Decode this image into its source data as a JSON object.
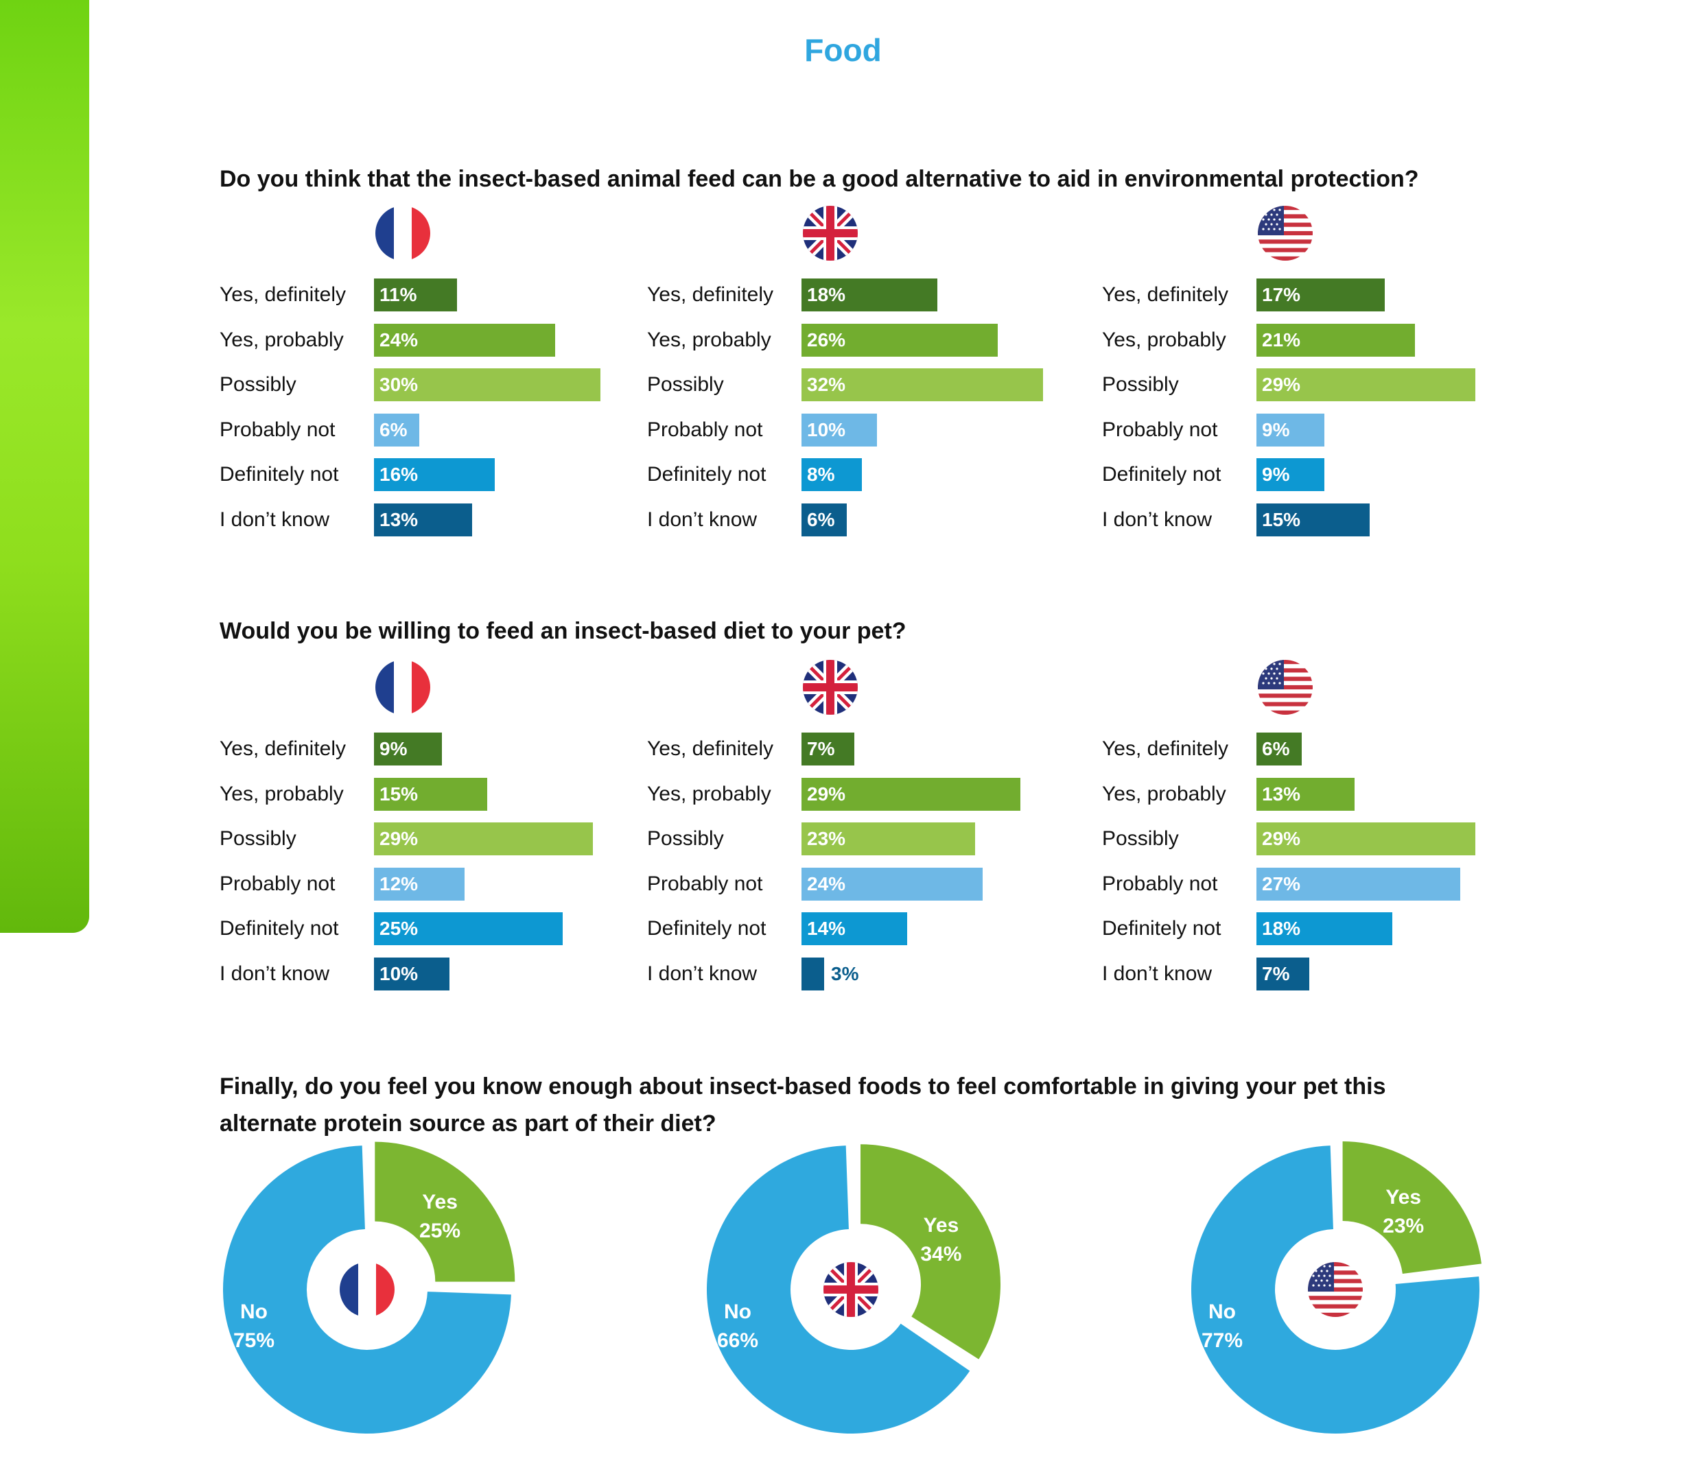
{
  "page": {
    "title": "Food"
  },
  "colors": {
    "title_blue": "#2fa6df",
    "yes_definitely": "#447a25",
    "yes_probably": "#72ad2f",
    "possibly": "#97c54b",
    "probably_not": "#6eb8e6",
    "definitely_not": "#0d98d2",
    "dont_know": "#0b5e8d",
    "donut_yes": "#7cb631",
    "donut_no": "#2fa9de"
  },
  "countries": [
    "France",
    "United Kingdom",
    "United States"
  ],
  "categories": [
    "Yes, definitely",
    "Yes, probably",
    "Possibly",
    "Probably not",
    "Definitely not",
    "I don’t know"
  ],
  "questions": {
    "q1": "Do you think that the insect-based animal feed can be a good alternative to aid in environmental protection?",
    "q2": "Would you be willing to feed an insect-based diet to your pet?",
    "q3_line1": "Finally, do you feel you know enough about insect-based foods to feel comfortable in giving your pet this",
    "q3_line2": "alternate protein source as part of their diet?"
  },
  "chart_data": [
    {
      "type": "bar",
      "title": "Do you think that the insect-based animal feed can be a good alternative to aid in environmental protection?",
      "categories": [
        "Yes, definitely",
        "Yes, probably",
        "Possibly",
        "Probably not",
        "Definitely not",
        "I don’t know"
      ],
      "unit": "%",
      "series": [
        {
          "name": "France",
          "flag": "france-flag",
          "values": [
            11,
            24,
            30,
            6,
            16,
            13
          ],
          "labels": [
            "11%",
            "24%",
            "30%",
            "6%",
            "16%",
            "13%"
          ]
        },
        {
          "name": "United Kingdom",
          "flag": "uk-flag",
          "values": [
            18,
            26,
            32,
            10,
            8,
            6
          ],
          "labels": [
            "18%",
            "26%",
            "32%",
            "10%",
            "8%",
            "6%"
          ]
        },
        {
          "name": "United States",
          "flag": "us-flag",
          "values": [
            17,
            21,
            29,
            9,
            9,
            15
          ],
          "labels": [
            "17%",
            "21%",
            "29%",
            "9%",
            "9%",
            "15%"
          ]
        }
      ]
    },
    {
      "type": "bar",
      "title": "Would you be willing to feed an insect-based diet to your pet?",
      "categories": [
        "Yes, definitely",
        "Yes, probably",
        "Possibly",
        "Probably not",
        "Definitely not",
        "I don’t know"
      ],
      "unit": "%",
      "series": [
        {
          "name": "France",
          "flag": "france-flag",
          "values": [
            9,
            15,
            29,
            12,
            25,
            10
          ],
          "labels": [
            "9%",
            "15%",
            "29%",
            "12%",
            "25%",
            "10%"
          ]
        },
        {
          "name": "United Kingdom",
          "flag": "uk-flag",
          "values": [
            7,
            29,
            23,
            24,
            14,
            3
          ],
          "labels": [
            "7%",
            "29%",
            "23%",
            "24%",
            "14%",
            "3%"
          ]
        },
        {
          "name": "United States",
          "flag": "us-flag",
          "values": [
            6,
            13,
            29,
            27,
            18,
            7
          ],
          "labels": [
            "6%",
            "13%",
            "29%",
            "27%",
            "18%",
            "7%"
          ]
        }
      ]
    },
    {
      "type": "pie",
      "title": "Finally, do you feel you know enough about insect-based foods to feel comfortable in giving your pet this alternate protein source as part of their diet?",
      "charts": [
        {
          "name": "France",
          "flag": "france-flag",
          "yes_label": "Yes",
          "no_label": "No",
          "yes": 25,
          "no": 75,
          "yes_text": "25%",
          "no_text": "75%"
        },
        {
          "name": "United Kingdom",
          "flag": "uk-flag",
          "yes_label": "Yes",
          "no_label": "No",
          "yes": 34,
          "no": 66,
          "yes_text": "34%",
          "no_text": "66%"
        },
        {
          "name": "United States",
          "flag": "us-flag",
          "yes_label": "Yes",
          "no_label": "No",
          "yes": 23,
          "no": 77,
          "yes_text": "23%",
          "no_text": "77%"
        }
      ]
    }
  ]
}
